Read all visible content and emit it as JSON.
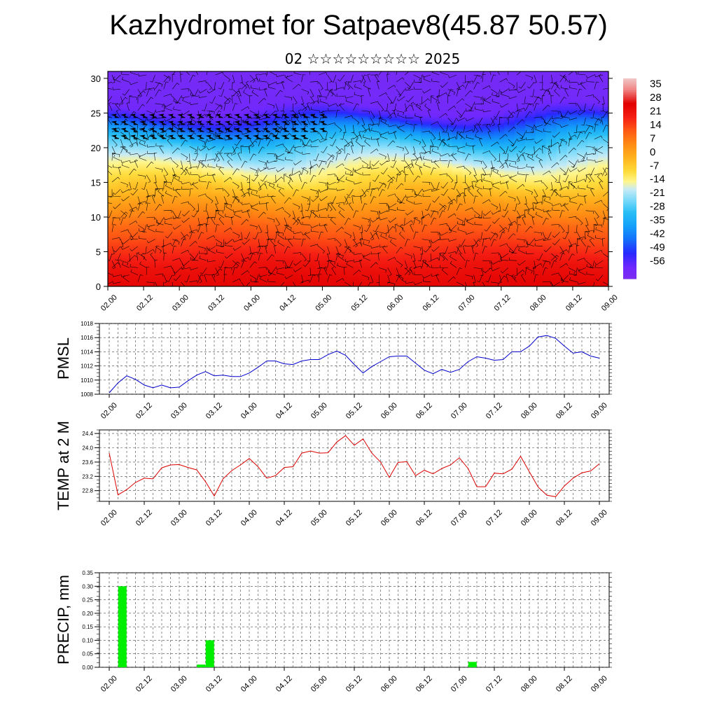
{
  "header": {
    "title": "Kazhydromet for Satpaev8(45.87 50.57)",
    "subtitle": "02 ☆☆☆☆☆☆☆☆☆ 2025"
  },
  "chart_data": [
    {
      "type": "heatmap",
      "panel": "cross-section",
      "x_ticks": [
        "02.00",
        "02.12",
        "03.00",
        "03.12",
        "04.00",
        "04.12",
        "05.00",
        "05.12",
        "06.00",
        "06.12",
        "07.00",
        "07.12",
        "08.00",
        "08.12",
        "09.00"
      ],
      "y_ticks": [
        "0",
        "5",
        "10",
        "15",
        "20",
        "25",
        "30"
      ],
      "ylim": [
        0,
        31
      ],
      "xlim": [
        0,
        14
      ],
      "colorbar_ticks": [
        "35",
        "28",
        "21",
        "14",
        "7",
        "0",
        "-7",
        "-14",
        "-21",
        "-28",
        "-35",
        "-42",
        "-49",
        "-56"
      ],
      "colorbar_range": [
        -62,
        41
      ],
      "colors": {
        "min": "#7b2cf0",
        "max": "#f0c8c8"
      },
      "profile": [
        [
          0,
          27
        ],
        [
          3,
          24
        ],
        [
          6,
          18
        ],
        [
          9,
          12
        ],
        [
          12,
          4
        ],
        [
          15,
          -6
        ],
        [
          17.5,
          -14
        ],
        [
          20.5,
          -26
        ],
        [
          22.5,
          -38
        ],
        [
          24.5,
          -52
        ],
        [
          26,
          -58
        ],
        [
          31,
          -60
        ]
      ],
      "wind_barbs": true
    },
    {
      "type": "line",
      "panel": "pmsl",
      "ylabel": "PMSL",
      "color": "#0000cc",
      "ylim": [
        1008,
        1018
      ],
      "y_ticks": [
        "1008",
        "1010",
        "1012",
        "1014",
        "1016",
        "1018"
      ],
      "x_ticks": [
        "02.00",
        "02.12",
        "03.00",
        "03.12",
        "04.00",
        "04.12",
        "05.00",
        "05.12",
        "06.00",
        "06.12",
        "07.00",
        "07.12",
        "08.00",
        "08.12",
        "09.00"
      ],
      "x": [
        0,
        0.25,
        0.5,
        0.75,
        1,
        1.25,
        1.5,
        1.75,
        2,
        2.25,
        2.5,
        2.75,
        3,
        3.25,
        3.5,
        3.75,
        4,
        4.25,
        4.5,
        4.75,
        5,
        5.25,
        5.5,
        5.75,
        6,
        6.25,
        6.5,
        6.75,
        7,
        7.25,
        7.5,
        7.75,
        8,
        8.25,
        8.5,
        8.75,
        9,
        9.25,
        9.5,
        9.75,
        10,
        10.25,
        10.5,
        10.75,
        11,
        11.25,
        11.5,
        11.75,
        12,
        12.25,
        12.5,
        12.75,
        13,
        13.25,
        13.5,
        13.75,
        14
      ],
      "values": [
        1008.2,
        1009.6,
        1010.6,
        1010.1,
        1009.3,
        1008.9,
        1009.3,
        1008.9,
        1009.0,
        1009.9,
        1010.7,
        1011.2,
        1010.6,
        1010.7,
        1010.5,
        1010.5,
        1011.0,
        1011.8,
        1012.7,
        1012.7,
        1012.3,
        1012.2,
        1012.7,
        1012.9,
        1012.9,
        1013.6,
        1014.1,
        1013.5,
        1012.2,
        1011.0,
        1011.9,
        1012.6,
        1013.3,
        1013.4,
        1013.4,
        1012.4,
        1011.4,
        1010.9,
        1011.5,
        1011.1,
        1011.5,
        1012.6,
        1013.3,
        1013.1,
        1012.8,
        1012.9,
        1014.0,
        1014.0,
        1014.8,
        1016.1,
        1016.3,
        1015.9,
        1014.8,
        1013.8,
        1014.0,
        1013.4,
        1013.1
      ]
    },
    {
      "type": "line",
      "panel": "temp2m",
      "ylabel": "TEMP at 2 M",
      "color": "#dd0000",
      "ylim": [
        22.5,
        24.5
      ],
      "y_ticks": [
        "22.8",
        "23.2",
        "23.6",
        "24.0",
        "24.4"
      ],
      "x_ticks": [
        "02.00",
        "02.12",
        "03.00",
        "03.12",
        "04.00",
        "04.12",
        "05.00",
        "05.12",
        "06.00",
        "06.12",
        "07.00",
        "07.12",
        "08.00",
        "08.12",
        "09.00"
      ],
      "x": [
        0,
        0.25,
        0.5,
        0.75,
        1,
        1.25,
        1.5,
        1.75,
        2,
        2.25,
        2.5,
        2.75,
        3,
        3.25,
        3.5,
        3.75,
        4,
        4.25,
        4.5,
        4.75,
        5,
        5.25,
        5.5,
        5.75,
        6,
        6.25,
        6.5,
        6.75,
        7,
        7.25,
        7.5,
        7.75,
        8,
        8.25,
        8.5,
        8.75,
        9,
        9.25,
        9.5,
        9.75,
        10,
        10.25,
        10.5,
        10.75,
        11,
        11.25,
        11.5,
        11.75,
        12,
        12.25,
        12.5,
        12.75,
        13,
        13.25,
        13.5,
        13.75,
        14
      ],
      "values": [
        23.85,
        22.68,
        22.83,
        23.03,
        23.15,
        23.13,
        23.44,
        23.52,
        23.53,
        23.45,
        23.38,
        23.05,
        22.65,
        23.13,
        23.36,
        23.52,
        23.7,
        23.47,
        23.15,
        23.22,
        23.45,
        23.47,
        23.85,
        23.91,
        23.85,
        23.86,
        24.16,
        24.34,
        24.07,
        24.25,
        23.85,
        23.6,
        23.17,
        23.59,
        23.61,
        23.22,
        23.37,
        23.27,
        23.42,
        23.52,
        23.72,
        23.42,
        22.91,
        22.91,
        23.29,
        23.27,
        23.4,
        23.76,
        23.33,
        22.9,
        22.67,
        22.63,
        22.93,
        23.15,
        23.3,
        23.35,
        23.55
      ]
    },
    {
      "type": "bar",
      "panel": "precip",
      "ylabel": "PRECIP, mm",
      "color": "#00ee00",
      "ylim": [
        0,
        0.35
      ],
      "y_ticks": [
        "0.00",
        "0.05",
        "0.10",
        "0.15",
        "0.20",
        "0.25",
        "0.30",
        "0.35"
      ],
      "x_ticks": [
        "02.00",
        "02.12",
        "03.00",
        "03.12",
        "04.00",
        "04.12",
        "05.00",
        "05.12",
        "06.00",
        "06.12",
        "07.00",
        "07.12",
        "08.00",
        "08.12",
        "09.00"
      ],
      "x": [
        0.375,
        2.625,
        2.875,
        10.375
      ],
      "values": [
        0.3,
        0.01,
        0.1,
        0.02
      ]
    }
  ]
}
